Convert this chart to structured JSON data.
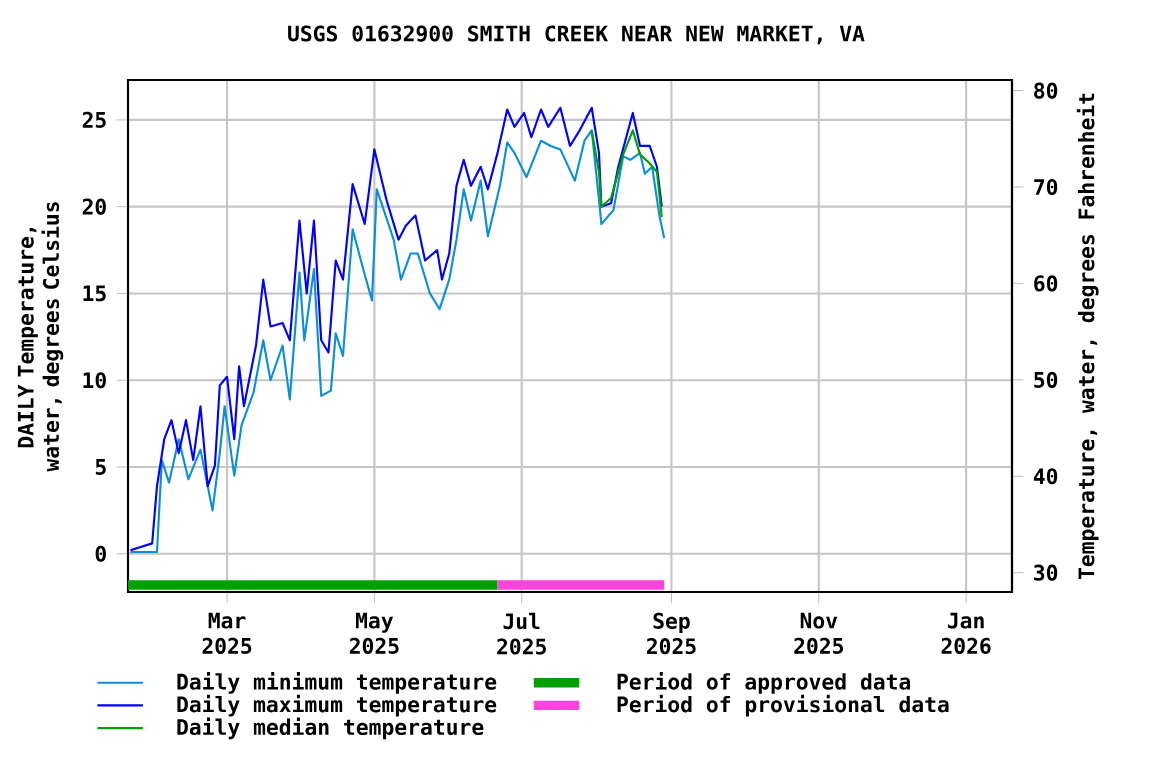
{
  "chart_data": {
    "type": "line",
    "title": "USGS 01632900 SMITH CREEK NEAR NEW MARKET, VA",
    "ylabel": "DAILY Temperature, water, degrees Celsius",
    "y2label": "Temperature, water, degrees Fahrenheit",
    "xlim": [
      "2025-01-19",
      "2026-01-20"
    ],
    "xticks": [
      {
        "value": "2025-03-01",
        "label": "Mar 2025"
      },
      {
        "value": "2025-05-01",
        "label": "May 2025"
      },
      {
        "value": "2025-07-01",
        "label": "Jul 2025"
      },
      {
        "value": "2025-09-01",
        "label": "Sep 2025"
      },
      {
        "value": "2025-11-01",
        "label": "Nov 2025"
      },
      {
        "value": "2026-01-01",
        "label": "Jan 2026"
      }
    ],
    "ylim": [
      -2.2,
      27.3
    ],
    "yticks": [
      0,
      5,
      10,
      15,
      20,
      25
    ],
    "y2lim": [
      28,
      81.1
    ],
    "y2ticks": [
      30,
      40,
      50,
      60,
      70,
      80
    ],
    "grid": true,
    "legend": "bottom",
    "series": [
      {
        "name": "Daily minimum temperature",
        "color": "#0a8fd8",
        "x": [
          "2025-01-20",
          "2025-01-31",
          "2025-02-02",
          "2025-02-05",
          "2025-02-09",
          "2025-02-13",
          "2025-02-18",
          "2025-02-23",
          "2025-02-26",
          "2025-02-28",
          "2025-03-04",
          "2025-03-07",
          "2025-03-12",
          "2025-03-16",
          "2025-03-19",
          "2025-03-24",
          "2025-03-27",
          "2025-03-31",
          "2025-04-02",
          "2025-04-06",
          "2025-04-09",
          "2025-04-13",
          "2025-04-15",
          "2025-04-18",
          "2025-04-22",
          "2025-04-26",
          "2025-04-30",
          "2025-05-02",
          "2025-05-09",
          "2025-05-12",
          "2025-05-16",
          "2025-05-19",
          "2025-05-24",
          "2025-05-28",
          "2025-06-01",
          "2025-06-04",
          "2025-06-07",
          "2025-06-10",
          "2025-06-14",
          "2025-06-17",
          "2025-06-22",
          "2025-06-25",
          "2025-06-28",
          "2025-07-03",
          "2025-07-09",
          "2025-07-13",
          "2025-07-17",
          "2025-07-23",
          "2025-07-27",
          "2025-07-30",
          "2025-08-02",
          "2025-08-03",
          "2025-08-08",
          "2025-08-12",
          "2025-08-15",
          "2025-08-19",
          "2025-08-21",
          "2025-08-24",
          "2025-08-27",
          "2025-08-29"
        ],
        "values": [
          0.1,
          0.1,
          5.4,
          4.1,
          6.6,
          4.3,
          6.0,
          2.5,
          5.8,
          8.5,
          4.5,
          7.4,
          9.3,
          12.3,
          10.0,
          12.0,
          8.9,
          16.2,
          12.3,
          16.4,
          9.1,
          9.4,
          12.7,
          11.4,
          18.7,
          16.6,
          14.6,
          21.0,
          18.1,
          15.8,
          17.3,
          17.3,
          15.0,
          14.1,
          15.8,
          18.1,
          21.0,
          19.2,
          21.5,
          18.3,
          21.2,
          23.7,
          23.1,
          21.7,
          23.8,
          23.5,
          23.3,
          21.5,
          23.8,
          24.4,
          20.4,
          19.0,
          19.8,
          22.9,
          22.7,
          23.1,
          21.9,
          22.3,
          19.5,
          18.2
        ]
      },
      {
        "name": "Daily maximum temperature",
        "color": "#0000ff",
        "x": [
          "2025-01-20",
          "2025-01-29",
          "2025-01-31",
          "2025-02-03",
          "2025-02-06",
          "2025-02-09",
          "2025-02-12",
          "2025-02-15",
          "2025-02-18",
          "2025-02-21",
          "2025-02-24",
          "2025-02-26",
          "2025-03-01",
          "2025-03-04",
          "2025-03-06",
          "2025-03-08",
          "2025-03-13",
          "2025-03-16",
          "2025-03-19",
          "2025-03-24",
          "2025-03-27",
          "2025-03-31",
          "2025-04-03",
          "2025-04-06",
          "2025-04-09",
          "2025-04-12",
          "2025-04-15",
          "2025-04-18",
          "2025-04-22",
          "2025-04-27",
          "2025-05-01",
          "2025-05-06",
          "2025-05-11",
          "2025-05-14",
          "2025-05-18",
          "2025-05-22",
          "2025-05-27",
          "2025-05-29",
          "2025-06-01",
          "2025-06-04",
          "2025-06-07",
          "2025-06-10",
          "2025-06-14",
          "2025-06-17",
          "2025-06-21",
          "2025-06-25",
          "2025-06-28",
          "2025-07-02",
          "2025-07-05",
          "2025-07-09",
          "2025-07-12",
          "2025-07-17",
          "2025-07-21",
          "2025-07-25",
          "2025-07-30",
          "2025-08-02",
          "2025-08-03",
          "2025-08-07",
          "2025-08-10",
          "2025-08-16",
          "2025-08-19",
          "2025-08-23",
          "2025-08-26",
          "2025-08-28"
        ],
        "values": [
          0.2,
          0.6,
          3.9,
          6.6,
          7.7,
          5.8,
          7.7,
          5.4,
          8.5,
          3.9,
          5.1,
          9.7,
          10.2,
          6.6,
          10.8,
          8.5,
          12.0,
          15.8,
          13.1,
          13.3,
          12.3,
          19.2,
          15.0,
          19.2,
          12.3,
          11.6,
          16.9,
          15.8,
          21.3,
          19.0,
          23.3,
          20.4,
          18.1,
          18.9,
          19.5,
          16.9,
          17.5,
          15.8,
          17.3,
          21.2,
          22.7,
          21.2,
          22.3,
          21.0,
          23.1,
          25.6,
          24.6,
          25.4,
          24.0,
          25.6,
          24.6,
          25.7,
          23.5,
          24.4,
          25.7,
          23.1,
          20.0,
          20.2,
          22.3,
          25.4,
          23.5,
          23.5,
          22.3,
          20.0
        ]
      },
      {
        "name": "Daily median temperature",
        "color": "#00a000",
        "x": [
          "2025-07-30",
          "2025-08-02",
          "2025-08-03",
          "2025-08-07",
          "2025-08-12",
          "2025-08-16",
          "2025-08-19",
          "2025-08-23",
          "2025-08-26",
          "2025-08-28"
        ],
        "values": [
          24.4,
          22.0,
          20.0,
          20.5,
          23.0,
          24.4,
          23.0,
          22.5,
          22.0,
          19.4
        ]
      },
      {
        "name": "Period of approved data",
        "color": "#00a000",
        "x": [
          "2025-01-19",
          "2025-06-21"
        ],
        "values": [
          -1.8,
          -1.8
        ]
      },
      {
        "name": "Period of provisional data",
        "color": "#ff44dd",
        "x": [
          "2025-06-21",
          "2025-08-29"
        ],
        "values": [
          -1.8,
          -1.8
        ]
      }
    ]
  }
}
